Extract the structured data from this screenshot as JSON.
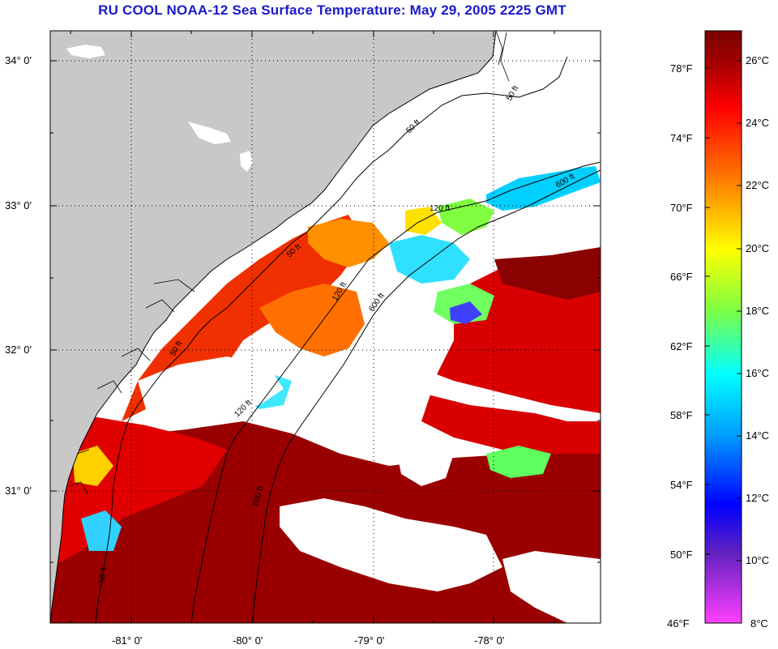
{
  "title": "RU COOL  NOAA-12  Sea Surface Temperature:  May 29, 2005 2225 GMT",
  "map": {
    "lat_labels": [
      "34° 0'",
      "33° 0'",
      "32° 0'",
      "31° 0'"
    ],
    "lon_labels": [
      "-81° 0'",
      "-80° 0'",
      "-79° 0'",
      "-78° 0'"
    ],
    "contour_labels": [
      "50 ft",
      "50 ft",
      "600 ft",
      "120 ft",
      "50 ft",
      "120 ft",
      "600 ft",
      "50 ft",
      "120 ft",
      "600 ft",
      "50 ft"
    ]
  },
  "legend": {
    "fahrenheit_labels": [
      "78°F",
      "74°F",
      "70°F",
      "66°F",
      "62°F",
      "58°F",
      "54°F",
      "50°F",
      "46°F"
    ],
    "celsius_labels": [
      "26°C",
      "24°C",
      "22°C",
      "20°C",
      "18°C",
      "16°C",
      "14°C",
      "12°C",
      "10°C",
      "8°C"
    ],
    "colors": {
      "top": "#8b0000",
      "red": "#ff0000",
      "orange": "#ff8c00",
      "yellow": "#ffff00",
      "green": "#00ff00",
      "cyan": "#00ffff",
      "blue": "#0000ff",
      "purple": "#8020c0",
      "bottom": "#ff40ff"
    }
  },
  "colors": {
    "title": "#1a1acc",
    "land": "#c8c8c8",
    "cloud": "#ffffff",
    "grid": "#000000"
  }
}
